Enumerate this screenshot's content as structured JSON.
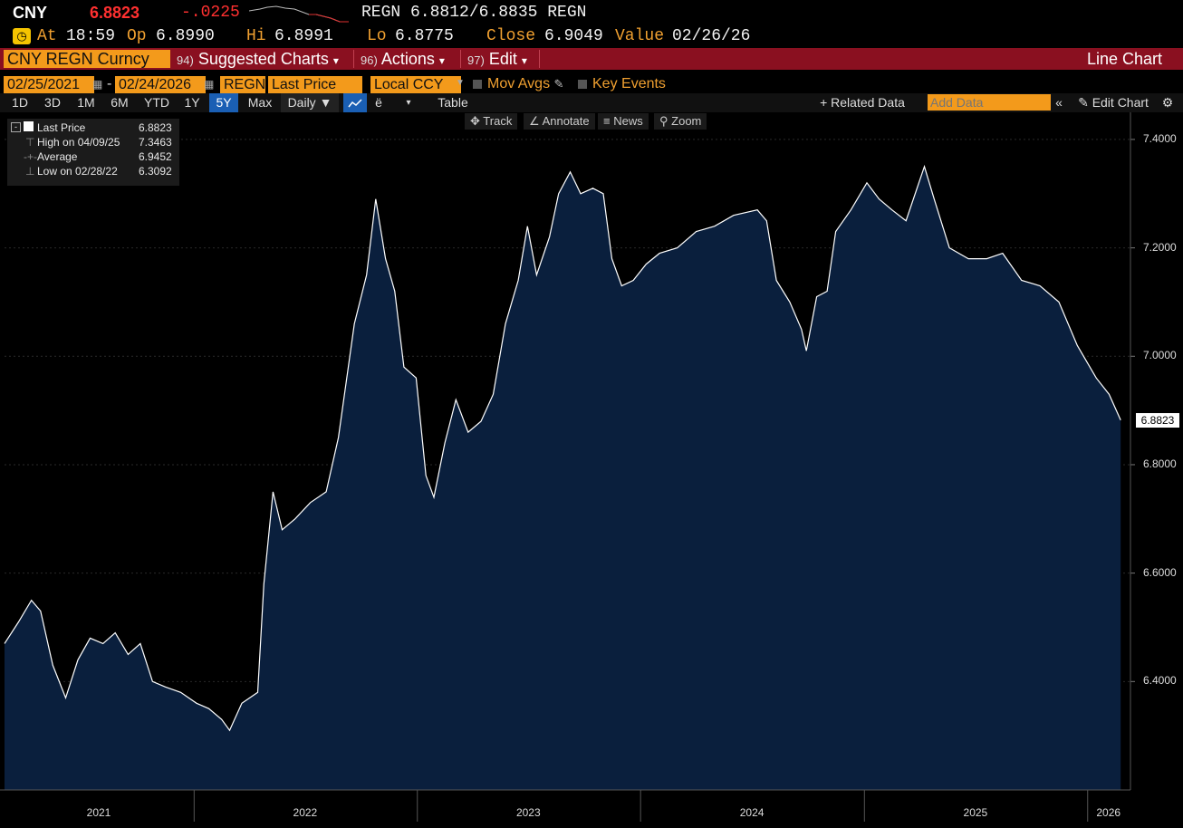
{
  "header": {
    "ticker": "CNY",
    "last": "6.8823",
    "change": "-.0225",
    "quote": "REGN 6.8812/6.8835 REGN",
    "at_label": "At",
    "time": "18:59",
    "op_label": "Op",
    "op": "6.8990",
    "hi_label": "Hi",
    "hi": "6.8991",
    "lo_label": "Lo",
    "lo": "6.8775",
    "close_label": "Close",
    "close": "6.9049",
    "value_label": "Value",
    "value": "02/26/26"
  },
  "menubar": {
    "security": "CNY REGN Curncy",
    "suggested_num": "94)",
    "suggested": "Suggested Charts",
    "actions_num": "96)",
    "actions": "Actions",
    "edit_num": "97)",
    "edit": "Edit",
    "caret": "▾",
    "chart_type": "Line Chart"
  },
  "controls": {
    "start_date": "02/25/2021",
    "dash": "-",
    "end_date": "02/24/2026",
    "source": "REGN",
    "field": "Last Price",
    "currency": "Local CCY",
    "mov_avgs": "Mov Avgs",
    "key_events": "Key Events"
  },
  "toolbar": {
    "ranges": [
      "1D",
      "3D",
      "1M",
      "6M",
      "YTD",
      "1Y",
      "5Y",
      "Max"
    ],
    "active_range": "5Y",
    "frequency": "Daily ▼",
    "table": "Table",
    "related": "+ Related Data",
    "add_data_placeholder": "Add Data",
    "edit_chart": "Edit Chart"
  },
  "plot_tools": {
    "track": "Track",
    "annotate": "Annotate",
    "news": "News",
    "zoom": "Zoom"
  },
  "legend": {
    "last_label": "Last Price",
    "last_value": "6.8823",
    "high_label": "High on 04/09/25",
    "high_value": "7.3463",
    "avg_label": "Average",
    "avg_value": "6.9452",
    "low_label": "Low on 02/28/22",
    "low_value": "6.3092"
  },
  "colors": {
    "accent": "#f39a1b",
    "menubar": "#8a1020",
    "area_fill": "#0a1f3d",
    "line": "#ffffff",
    "negative": "#ff3030"
  },
  "chart_data": {
    "type": "area",
    "series": [
      {
        "name": "Last Price",
        "points": [
          [
            "2021-02-25",
            6.47
          ],
          [
            "2021-03-20",
            6.51
          ],
          [
            "2021-04-10",
            6.55
          ],
          [
            "2021-04-25",
            6.53
          ],
          [
            "2021-05-15",
            6.43
          ],
          [
            "2021-06-05",
            6.37
          ],
          [
            "2021-06-25",
            6.44
          ],
          [
            "2021-07-15",
            6.48
          ],
          [
            "2021-08-05",
            6.47
          ],
          [
            "2021-08-25",
            6.49
          ],
          [
            "2021-09-15",
            6.45
          ],
          [
            "2021-10-05",
            6.47
          ],
          [
            "2021-10-25",
            6.4
          ],
          [
            "2021-11-15",
            6.39
          ],
          [
            "2021-12-10",
            6.38
          ],
          [
            "2022-01-05",
            6.36
          ],
          [
            "2022-01-25",
            6.35
          ],
          [
            "2022-02-15",
            6.33
          ],
          [
            "2022-02-28",
            6.31
          ],
          [
            "2022-03-20",
            6.36
          ],
          [
            "2022-04-15",
            6.38
          ],
          [
            "2022-04-25",
            6.58
          ],
          [
            "2022-05-10",
            6.75
          ],
          [
            "2022-05-25",
            6.68
          ],
          [
            "2022-06-15",
            6.7
          ],
          [
            "2022-07-10",
            6.73
          ],
          [
            "2022-08-05",
            6.75
          ],
          [
            "2022-08-25",
            6.85
          ],
          [
            "2022-09-20",
            7.06
          ],
          [
            "2022-10-10",
            7.15
          ],
          [
            "2022-10-25",
            7.29
          ],
          [
            "2022-11-10",
            7.18
          ],
          [
            "2022-11-25",
            7.12
          ],
          [
            "2022-12-10",
            6.98
          ],
          [
            "2022-12-30",
            6.96
          ],
          [
            "2023-01-15",
            6.78
          ],
          [
            "2023-01-28",
            6.74
          ],
          [
            "2023-02-15",
            6.84
          ],
          [
            "2023-03-05",
            6.92
          ],
          [
            "2023-03-25",
            6.86
          ],
          [
            "2023-04-15",
            6.88
          ],
          [
            "2023-05-05",
            6.93
          ],
          [
            "2023-05-25",
            7.06
          ],
          [
            "2023-06-15",
            7.14
          ],
          [
            "2023-06-30",
            7.24
          ],
          [
            "2023-07-15",
            7.15
          ],
          [
            "2023-08-05",
            7.22
          ],
          [
            "2023-08-20",
            7.3
          ],
          [
            "2023-09-08",
            7.34
          ],
          [
            "2023-09-25",
            7.3
          ],
          [
            "2023-10-15",
            7.31
          ],
          [
            "2023-11-01",
            7.3
          ],
          [
            "2023-11-15",
            7.18
          ],
          [
            "2023-12-01",
            7.13
          ],
          [
            "2023-12-20",
            7.14
          ],
          [
            "2024-01-10",
            7.17
          ],
          [
            "2024-02-01",
            7.19
          ],
          [
            "2024-03-01",
            7.2
          ],
          [
            "2024-04-01",
            7.23
          ],
          [
            "2024-05-01",
            7.24
          ],
          [
            "2024-06-01",
            7.26
          ],
          [
            "2024-07-10",
            7.27
          ],
          [
            "2024-07-25",
            7.25
          ],
          [
            "2024-08-10",
            7.14
          ],
          [
            "2024-09-01",
            7.1
          ],
          [
            "2024-09-20",
            7.05
          ],
          [
            "2024-09-28",
            7.01
          ],
          [
            "2024-10-15",
            7.11
          ],
          [
            "2024-11-01",
            7.12
          ],
          [
            "2024-11-15",
            7.23
          ],
          [
            "2024-12-10",
            7.27
          ],
          [
            "2025-01-05",
            7.32
          ],
          [
            "2025-01-25",
            7.29
          ],
          [
            "2025-02-15",
            7.27
          ],
          [
            "2025-03-10",
            7.25
          ],
          [
            "2025-04-09",
            7.35
          ],
          [
            "2025-04-25",
            7.29
          ],
          [
            "2025-05-20",
            7.2
          ],
          [
            "2025-06-20",
            7.18
          ],
          [
            "2025-07-20",
            7.18
          ],
          [
            "2025-08-15",
            7.19
          ],
          [
            "2025-09-15",
            7.14
          ],
          [
            "2025-10-15",
            7.13
          ],
          [
            "2025-11-15",
            7.1
          ],
          [
            "2025-12-15",
            7.02
          ],
          [
            "2026-01-15",
            6.96
          ],
          [
            "2026-02-05",
            6.93
          ],
          [
            "2026-02-24",
            6.8823
          ]
        ]
      }
    ],
    "x_ticks": [
      "2021",
      "2022",
      "2023",
      "2024",
      "2025",
      "2026"
    ],
    "y_ticks": [
      "7.4000",
      "7.2000",
      "7.0000",
      "6.8000",
      "6.6000",
      "6.4000"
    ],
    "ylim": [
      6.2,
      7.45
    ],
    "xlim": [
      "2021-02-25",
      "2026-03-12"
    ],
    "grid": true,
    "legend_position": "top-left",
    "last_label": "6.8823"
  }
}
